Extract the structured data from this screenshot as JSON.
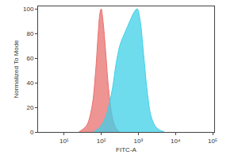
{
  "chart_data": {
    "type": "area",
    "x_label": "FITC-A",
    "y_label": "Normalized To Mode",
    "log": "x",
    "grid": false,
    "xlim": [
      2,
      110000
    ],
    "xticks": [
      {
        "value": 10,
        "label": "10¹"
      },
      {
        "value": 100,
        "label": "10²"
      },
      {
        "value": 1000,
        "label": "10³"
      },
      {
        "value": 10000,
        "label": "10⁴"
      },
      {
        "value": 100000,
        "label": "10⁵"
      }
    ],
    "ylim": [
      0,
      102
    ],
    "yticks": [
      0,
      20,
      40,
      60,
      80,
      100
    ],
    "series": [
      {
        "color": "#e8706e",
        "x": [
          25,
          40,
          56,
          71,
          83,
          93,
          100,
          112,
          132,
          158,
          200,
          251,
          316
        ],
        "values": [
          0,
          5,
          20,
          50,
          80,
          97,
          100,
          90,
          65,
          35,
          12,
          3,
          0
        ]
      },
      {
        "color": "#3fd0e8",
        "x": [
          63,
          100,
          141,
          200,
          251,
          316,
          398,
          501,
          631,
          794,
          933,
          1122,
          1413,
          1778,
          2239,
          3162,
          5012
        ],
        "values": [
          0,
          5,
          15,
          35,
          55,
          70,
          78,
          85,
          92,
          98,
          100,
          90,
          60,
          30,
          12,
          3,
          0
        ]
      }
    ]
  }
}
